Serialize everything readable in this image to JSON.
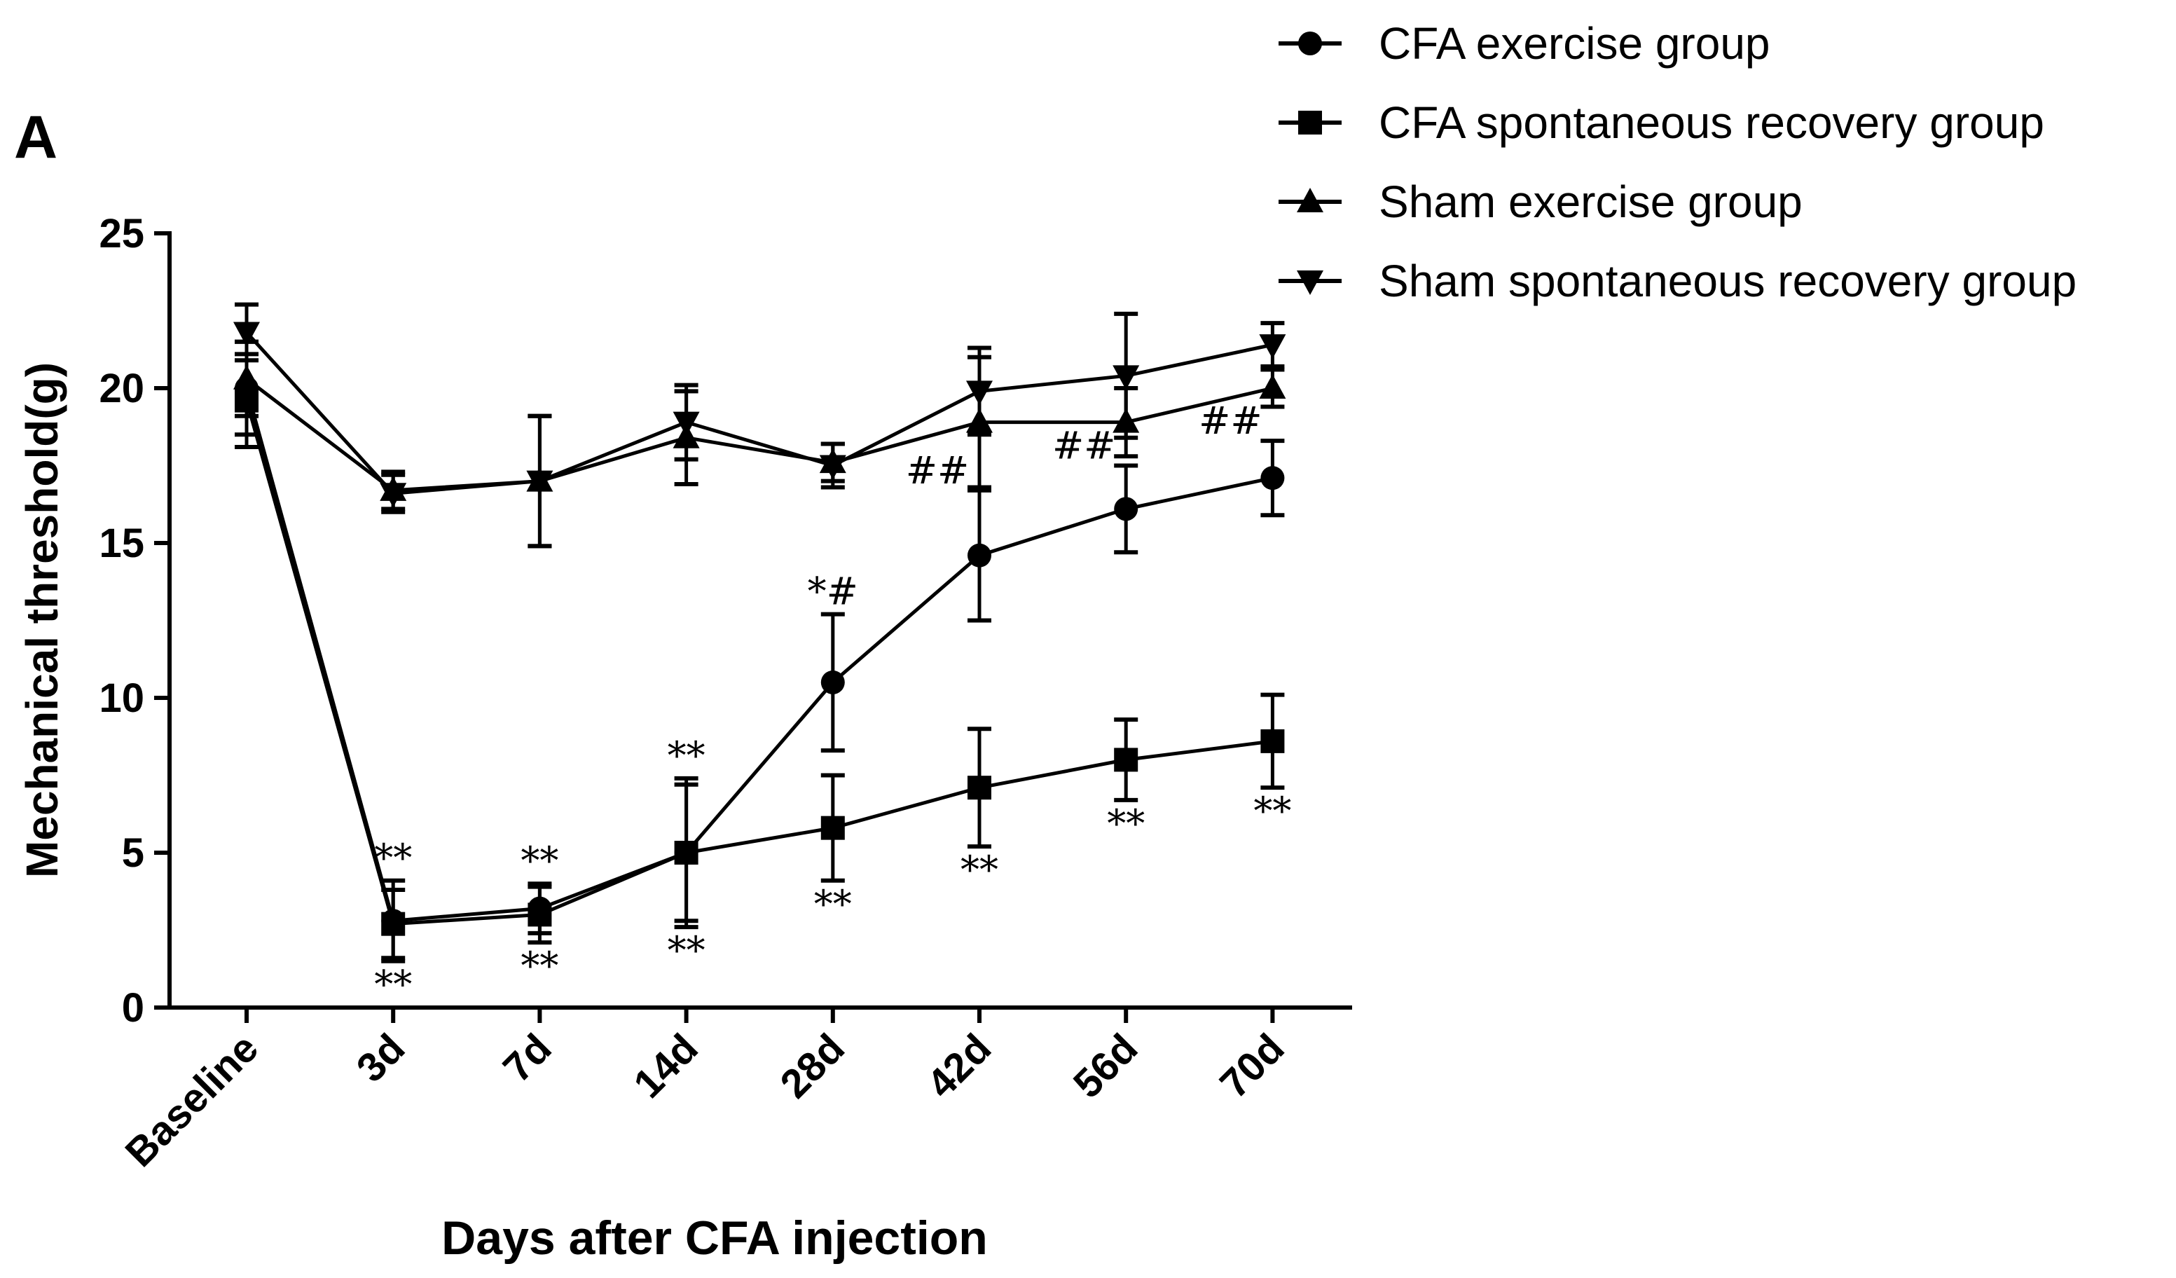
{
  "panel_label": "A",
  "chart_data": {
    "type": "line",
    "title": "",
    "xlabel": "Days after CFA injection",
    "ylabel": "Mechanical threshold(g)",
    "categories": [
      "Baseline",
      "3d",
      "7d",
      "14d",
      "28d",
      "42d",
      "56d",
      "70d"
    ],
    "ylim": [
      0,
      25
    ],
    "yticks": [
      0,
      5,
      10,
      15,
      20,
      25
    ],
    "grid": false,
    "legend_position": "top-right",
    "series": [
      {
        "name": "CFA exercise group",
        "marker": "circle",
        "values": [
          20.0,
          2.8,
          3.2,
          5.0,
          10.5,
          14.6,
          16.1,
          17.1
        ],
        "errors": [
          1.5,
          1.3,
          0.8,
          2.4,
          2.2,
          2.1,
          1.4,
          1.2
        ]
      },
      {
        "name": "CFA spontaneous recovery group",
        "marker": "square",
        "values": [
          19.6,
          2.7,
          3.0,
          5.0,
          5.8,
          7.1,
          8.0,
          8.6
        ],
        "errors": [
          1.5,
          1.1,
          0.9,
          2.2,
          1.7,
          1.9,
          1.3,
          1.5
        ]
      },
      {
        "name": "Sham exercise group",
        "marker": "triangle-up",
        "values": [
          20.3,
          16.7,
          17.0,
          18.4,
          17.6,
          18.9,
          18.9,
          20.0
        ],
        "errors": [
          1.2,
          0.6,
          2.1,
          1.5,
          0.6,
          2.1,
          1.1,
          0.6
        ]
      },
      {
        "name": "Sham spontaneous recovery group",
        "marker": "triangle-down",
        "values": [
          21.8,
          16.6,
          17.0,
          18.9,
          17.5,
          19.9,
          20.4,
          21.4
        ],
        "errors": [
          0.9,
          0.6,
          2.1,
          1.2,
          0.7,
          1.4,
          2.0,
          0.7
        ]
      }
    ],
    "annotations": [
      {
        "category": "3d",
        "above": "**",
        "below": "**"
      },
      {
        "category": "7d",
        "above": "**",
        "below": "**"
      },
      {
        "category": "14d",
        "above": "**",
        "below": "**"
      },
      {
        "category": "28d",
        "above": "*#",
        "below": "**"
      },
      {
        "category": "42d",
        "above": "##",
        "below": "**"
      },
      {
        "category": "56d",
        "above": "##",
        "below": "**"
      },
      {
        "category": "70d",
        "above": "##",
        "below": "**"
      }
    ]
  }
}
